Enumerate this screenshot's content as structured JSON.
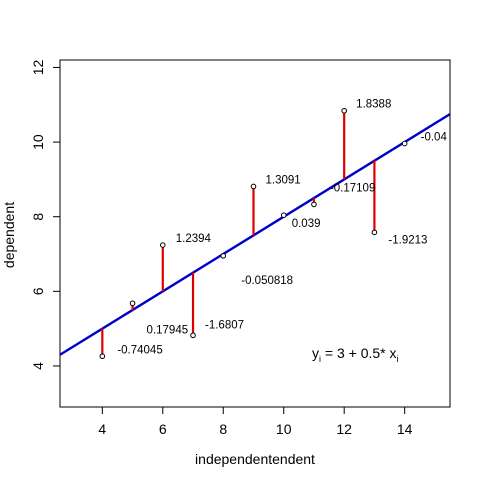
{
  "chart_data": {
    "type": "scatter",
    "xlabel": "independentendent",
    "ylabel": "dependent",
    "xlim": [
      2.6,
      15.5
    ],
    "ylim": [
      2.9,
      12.2
    ],
    "xticks": [
      4,
      6,
      8,
      10,
      12,
      14
    ],
    "yticks": [
      4,
      6,
      8,
      10,
      12
    ],
    "grid": false,
    "regression_line": {
      "intercept": 3,
      "slope": 0.5,
      "color": "#0000cc"
    },
    "residual_color": "#dd0000",
    "points": [
      {
        "x": 4,
        "y": 4.26
      },
      {
        "x": 5,
        "y": 5.68
      },
      {
        "x": 6,
        "y": 7.24
      },
      {
        "x": 7,
        "y": 4.82
      },
      {
        "x": 8,
        "y": 6.95
      },
      {
        "x": 9,
        "y": 8.81
      },
      {
        "x": 10,
        "y": 8.04
      },
      {
        "x": 11,
        "y": 8.33
      },
      {
        "x": 12,
        "y": 10.84
      },
      {
        "x": 13,
        "y": 7.58
      },
      {
        "x": 14,
        "y": 9.96
      }
    ],
    "residual_labels": [
      {
        "text": "-0.74045",
        "x": 4,
        "y": 4.26
      },
      {
        "text": "0.17945",
        "x": 5,
        "y": 5.68
      },
      {
        "text": "1.2394",
        "x": 6,
        "y": 7.24
      },
      {
        "text": "-1.6807",
        "x": 7,
        "y": 4.82
      },
      {
        "text": "-0.050818",
        "x": 8,
        "y": 6.95
      },
      {
        "text": "1.3091",
        "x": 9,
        "y": 8.81
      },
      {
        "text": "0.039",
        "x": 10,
        "y": 8.04
      },
      {
        "text": "-0.17109",
        "x": 11,
        "y": 8.33
      },
      {
        "text": "1.8388",
        "x": 12,
        "y": 10.84
      },
      {
        "text": "-1.9213",
        "x": 13,
        "y": 7.58
      },
      {
        "text": "-0.04",
        "x": 14,
        "y": 9.96
      }
    ],
    "equation": {
      "y": "y",
      "y_sub": "i",
      "mid": " = 3 + 0.5* x",
      "x_sub": "i"
    }
  }
}
